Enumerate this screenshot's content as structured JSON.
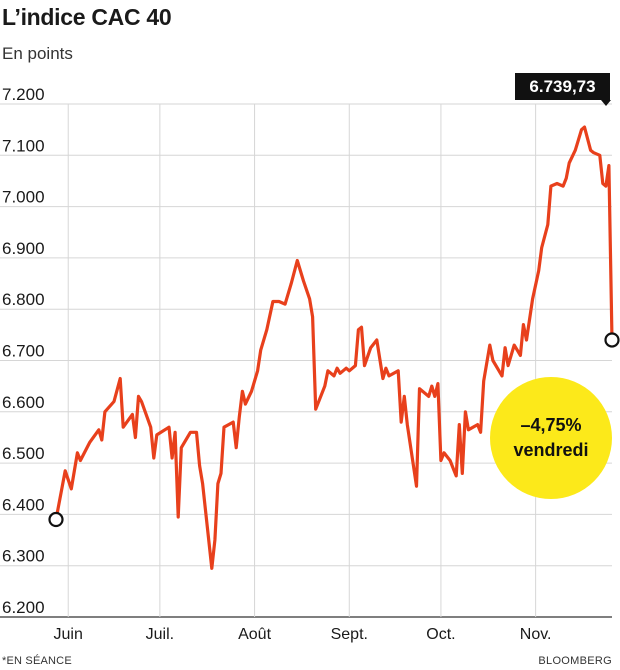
{
  "title": "L’indice CAC 40",
  "subtitle": "En points",
  "footer": {
    "note": "*EN SÉANCE",
    "source": "BLOOMBERG"
  },
  "annotations": {
    "last_value_label": "6.739,73",
    "change_line1": "–4,75%",
    "change_line2": "vendredi"
  },
  "colors": {
    "line": "#e8401c",
    "highlight": "#fce91a",
    "badge": "#111111",
    "grid": "#d6d6d6"
  },
  "chart_data": {
    "type": "line",
    "title": "L’indice CAC 40",
    "subtitle": "En points",
    "ylim": [
      6200,
      7200
    ],
    "yticks": [
      6200,
      6300,
      6400,
      6500,
      6600,
      6700,
      6800,
      6900,
      7000,
      7100,
      7200
    ],
    "ytick_labels": [
      "6.200",
      "6.300",
      "6.400",
      "6.500",
      "6.600",
      "6.700",
      "6.800",
      "6.900",
      "7.000",
      "7.100",
      "7.200"
    ],
    "xlim": [
      "2021-05-28",
      "2021-11-26"
    ],
    "xticks": [
      {
        "label": "Juin",
        "date": "2021-06-01"
      },
      {
        "label": "Juil.",
        "date": "2021-07-01"
      },
      {
        "label": "Août",
        "date": "2021-08-01"
      },
      {
        "label": "Sept.",
        "date": "2021-09-01"
      },
      {
        "label": "Oct.",
        "date": "2021-10-01"
      },
      {
        "label": "Nov.",
        "date": "2021-11-01"
      }
    ],
    "grid": true,
    "series": [
      {
        "points": [
          [
            "2021-05-28",
            6390
          ],
          [
            "2021-05-31",
            6485
          ],
          [
            "2021-06-02",
            6450
          ],
          [
            "2021-06-04",
            6520
          ],
          [
            "2021-06-05",
            6505
          ],
          [
            "2021-06-08",
            6540
          ],
          [
            "2021-06-11",
            6565
          ],
          [
            "2021-06-12",
            6545
          ],
          [
            "2021-06-13",
            6600
          ],
          [
            "2021-06-16",
            6620
          ],
          [
            "2021-06-18",
            6665
          ],
          [
            "2021-06-19",
            6570
          ],
          [
            "2021-06-22",
            6595
          ],
          [
            "2021-06-23",
            6550
          ],
          [
            "2021-06-24",
            6630
          ],
          [
            "2021-06-25",
            6620
          ],
          [
            "2021-06-28",
            6570
          ],
          [
            "2021-06-29",
            6510
          ],
          [
            "2021-06-30",
            6555
          ],
          [
            "2021-07-04",
            6570
          ],
          [
            "2021-07-05",
            6510
          ],
          [
            "2021-07-06",
            6560
          ],
          [
            "2021-07-07",
            6395
          ],
          [
            "2021-07-08",
            6530
          ],
          [
            "2021-07-11",
            6560
          ],
          [
            "2021-07-13",
            6560
          ],
          [
            "2021-07-14",
            6495
          ],
          [
            "2021-07-15",
            6460
          ],
          [
            "2021-07-18",
            6295
          ],
          [
            "2021-07-19",
            6350
          ],
          [
            "2021-07-20",
            6460
          ],
          [
            "2021-07-21",
            6480
          ],
          [
            "2021-07-22",
            6570
          ],
          [
            "2021-07-25",
            6580
          ],
          [
            "2021-07-26",
            6530
          ],
          [
            "2021-07-27",
            6590
          ],
          [
            "2021-07-28",
            6640
          ],
          [
            "2021-07-29",
            6615
          ],
          [
            "2021-07-31",
            6640
          ],
          [
            "2021-08-02",
            6680
          ],
          [
            "2021-08-03",
            6720
          ],
          [
            "2021-08-05",
            6760
          ],
          [
            "2021-08-07",
            6815
          ],
          [
            "2021-08-09",
            6815
          ],
          [
            "2021-08-11",
            6810
          ],
          [
            "2021-08-13",
            6850
          ],
          [
            "2021-08-15",
            6895
          ],
          [
            "2021-08-17",
            6855
          ],
          [
            "2021-08-19",
            6820
          ],
          [
            "2021-08-20",
            6785
          ],
          [
            "2021-08-21",
            6605
          ],
          [
            "2021-08-24",
            6650
          ],
          [
            "2021-08-25",
            6680
          ],
          [
            "2021-08-27",
            6670
          ],
          [
            "2021-08-28",
            6685
          ],
          [
            "2021-08-29",
            6675
          ],
          [
            "2021-08-31",
            6685
          ],
          [
            "2021-09-01",
            6680
          ],
          [
            "2021-09-03",
            6690
          ],
          [
            "2021-09-04",
            6760
          ],
          [
            "2021-09-05",
            6765
          ],
          [
            "2021-09-06",
            6690
          ],
          [
            "2021-09-08",
            6725
          ],
          [
            "2021-09-10",
            6740
          ],
          [
            "2021-09-12",
            6665
          ],
          [
            "2021-09-13",
            6685
          ],
          [
            "2021-09-14",
            6670
          ],
          [
            "2021-09-17",
            6680
          ],
          [
            "2021-09-18",
            6580
          ],
          [
            "2021-09-19",
            6630
          ],
          [
            "2021-09-20",
            6575
          ],
          [
            "2021-09-23",
            6455
          ],
          [
            "2021-09-24",
            6645
          ],
          [
            "2021-09-27",
            6630
          ],
          [
            "2021-09-28",
            6650
          ],
          [
            "2021-09-29",
            6630
          ],
          [
            "2021-09-30",
            6655
          ],
          [
            "2021-10-01",
            6505
          ],
          [
            "2021-10-02",
            6520
          ],
          [
            "2021-10-04",
            6505
          ],
          [
            "2021-10-05",
            6490
          ],
          [
            "2021-10-06",
            6475
          ],
          [
            "2021-10-07",
            6575
          ],
          [
            "2021-10-08",
            6480
          ],
          [
            "2021-10-09",
            6600
          ],
          [
            "2021-10-10",
            6565
          ],
          [
            "2021-10-13",
            6575
          ],
          [
            "2021-10-14",
            6560
          ],
          [
            "2021-10-15",
            6660
          ],
          [
            "2021-10-17",
            6730
          ],
          [
            "2021-10-18",
            6700
          ],
          [
            "2021-10-20",
            6680
          ],
          [
            "2021-10-21",
            6670
          ],
          [
            "2021-10-22",
            6725
          ],
          [
            "2021-10-23",
            6690
          ],
          [
            "2021-10-25",
            6730
          ],
          [
            "2021-10-26",
            6720
          ],
          [
            "2021-10-27",
            6710
          ],
          [
            "2021-10-28",
            6770
          ],
          [
            "2021-10-29",
            6740
          ],
          [
            "2021-10-31",
            6820
          ],
          [
            "2021-11-02",
            6875
          ],
          [
            "2021-11-03",
            6920
          ],
          [
            "2021-11-05",
            6965
          ],
          [
            "2021-11-06",
            7040
          ],
          [
            "2021-11-08",
            7045
          ],
          [
            "2021-11-10",
            7040
          ],
          [
            "2021-11-11",
            7055
          ],
          [
            "2021-11-12",
            7085
          ],
          [
            "2021-11-14",
            7110
          ],
          [
            "2021-11-15",
            7130
          ],
          [
            "2021-11-16",
            7150
          ],
          [
            "2021-11-17",
            7155
          ],
          [
            "2021-11-19",
            7110
          ],
          [
            "2021-11-20",
            7105
          ],
          [
            "2021-11-22",
            7100
          ],
          [
            "2021-11-23",
            7045
          ],
          [
            "2021-11-24",
            7040
          ],
          [
            "2021-11-25",
            7080
          ],
          [
            "2021-11-26",
            6740
          ]
        ]
      }
    ]
  }
}
